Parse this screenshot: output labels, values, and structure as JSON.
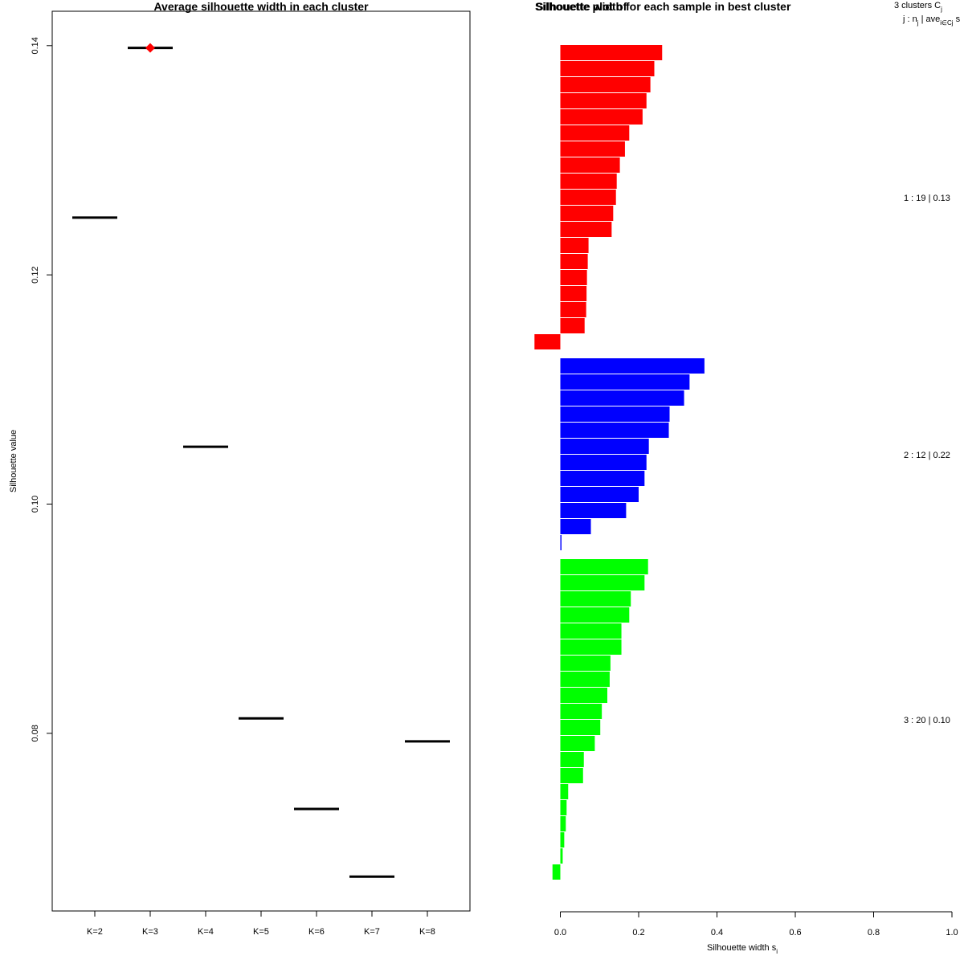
{
  "chart_data": [
    {
      "type": "line",
      "title": "Average silhouette width in each cluster",
      "xlabel": "",
      "ylabel": "Silhouette value",
      "categories": [
        "K=2",
        "K=3",
        "K=4",
        "K=5",
        "K=6",
        "K=7",
        "K=8"
      ],
      "values": [
        0.125,
        0.1398,
        0.105,
        0.0813,
        0.0734,
        0.0675,
        0.0793
      ],
      "best": {
        "category": "K=3",
        "value": 0.1398,
        "marker": "diamond",
        "color": "#ff0000"
      },
      "ylim": [
        0.0645,
        0.143
      ],
      "yticks": [
        0.08,
        0.1,
        0.12,
        0.14
      ],
      "ytick_labels": [
        "0.08",
        "0.10",
        "0.12",
        "0.14"
      ],
      "grid": false
    },
    {
      "type": "bar",
      "orientation": "horizontal",
      "title": "Silhouette width for each sample in best cluster",
      "title_overlap_text": "Silhouette plot of",
      "xlabel": "Silhouette width s",
      "xlabel_subscript": "i",
      "xlim": [
        0,
        1.0
      ],
      "xticks": [
        0.0,
        0.2,
        0.4,
        0.6,
        0.8,
        1.0
      ],
      "xtick_labels": [
        "0.0",
        "0.2",
        "0.4",
        "0.6",
        "0.8",
        "1.0"
      ],
      "legend_header": {
        "line1": "3  clusters  C",
        "line1_sub": "j",
        "line2": "j :  n",
        "line2_sub": "j",
        "line2_rest": " | ave",
        "line2_sub2": "i∈Cj",
        "line2_end": "  s"
      },
      "clusters": [
        {
          "id": 1,
          "n": 19,
          "avg": "0.13",
          "label": "1 :  19  |  0.13",
          "color": "#ff0000",
          "values": [
            0.26,
            0.24,
            0.23,
            0.22,
            0.21,
            0.176,
            0.165,
            0.152,
            0.144,
            0.142,
            0.135,
            0.131,
            0.072,
            0.07,
            0.068,
            0.067,
            0.066,
            0.062,
            -0.066
          ]
        },
        {
          "id": 2,
          "n": 12,
          "avg": "0.22",
          "label": "2 :  12  |  0.22",
          "color": "#0000ff",
          "values": [
            0.368,
            0.33,
            0.316,
            0.279,
            0.277,
            0.226,
            0.22,
            0.215,
            0.2,
            0.168,
            0.078,
            0.003
          ]
        },
        {
          "id": 3,
          "n": 20,
          "avg": "0.10",
          "label": "3 :  20  |  0.10",
          "color": "#00ff00",
          "values": [
            0.224,
            0.215,
            0.18,
            0.176,
            0.156,
            0.156,
            0.128,
            0.126,
            0.12,
            0.106,
            0.102,
            0.088,
            0.06,
            0.058,
            0.02,
            0.016,
            0.014,
            0.01,
            0.006,
            -0.02
          ]
        }
      ]
    }
  ]
}
